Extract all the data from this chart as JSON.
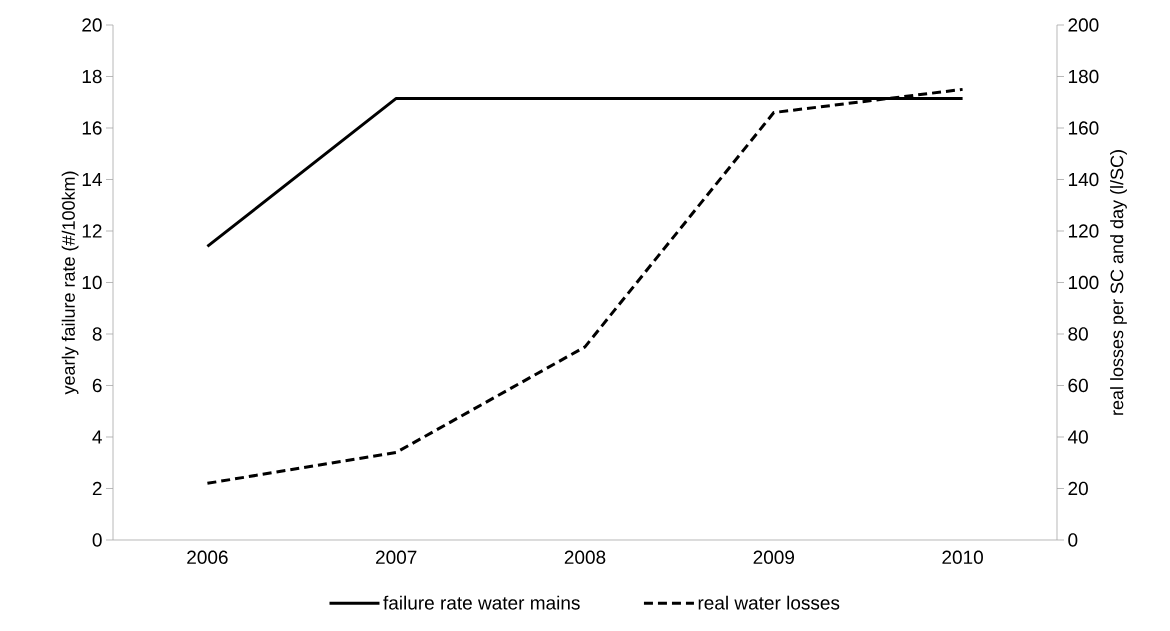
{
  "chart_data": {
    "type": "line",
    "categories": [
      "2006",
      "2007",
      "2008",
      "2009",
      "2010"
    ],
    "ylabel": "yearly failure rate  (#/100km)",
    "y2label": "real losses per SC and day (l/SC)",
    "ylim": [
      0,
      20
    ],
    "yticks": [
      0,
      2,
      4,
      6,
      8,
      10,
      12,
      14,
      16,
      18,
      20
    ],
    "y2lim": [
      0,
      200
    ],
    "y2ticks": [
      0,
      20,
      40,
      60,
      80,
      100,
      120,
      140,
      160,
      180,
      200
    ],
    "legend": "bottom",
    "series": [
      {
        "name": "failure rate water mains",
        "color": "#000000",
        "line_style": "solid",
        "values": [
          11.4,
          17.15,
          17.15,
          17.15,
          17.15
        ]
      },
      {
        "name": "real water losses",
        "color": "#000000",
        "line_style": "dashed",
        "axis": "y2",
        "values": [
          22,
          34,
          75,
          166,
          175
        ]
      }
    ]
  }
}
